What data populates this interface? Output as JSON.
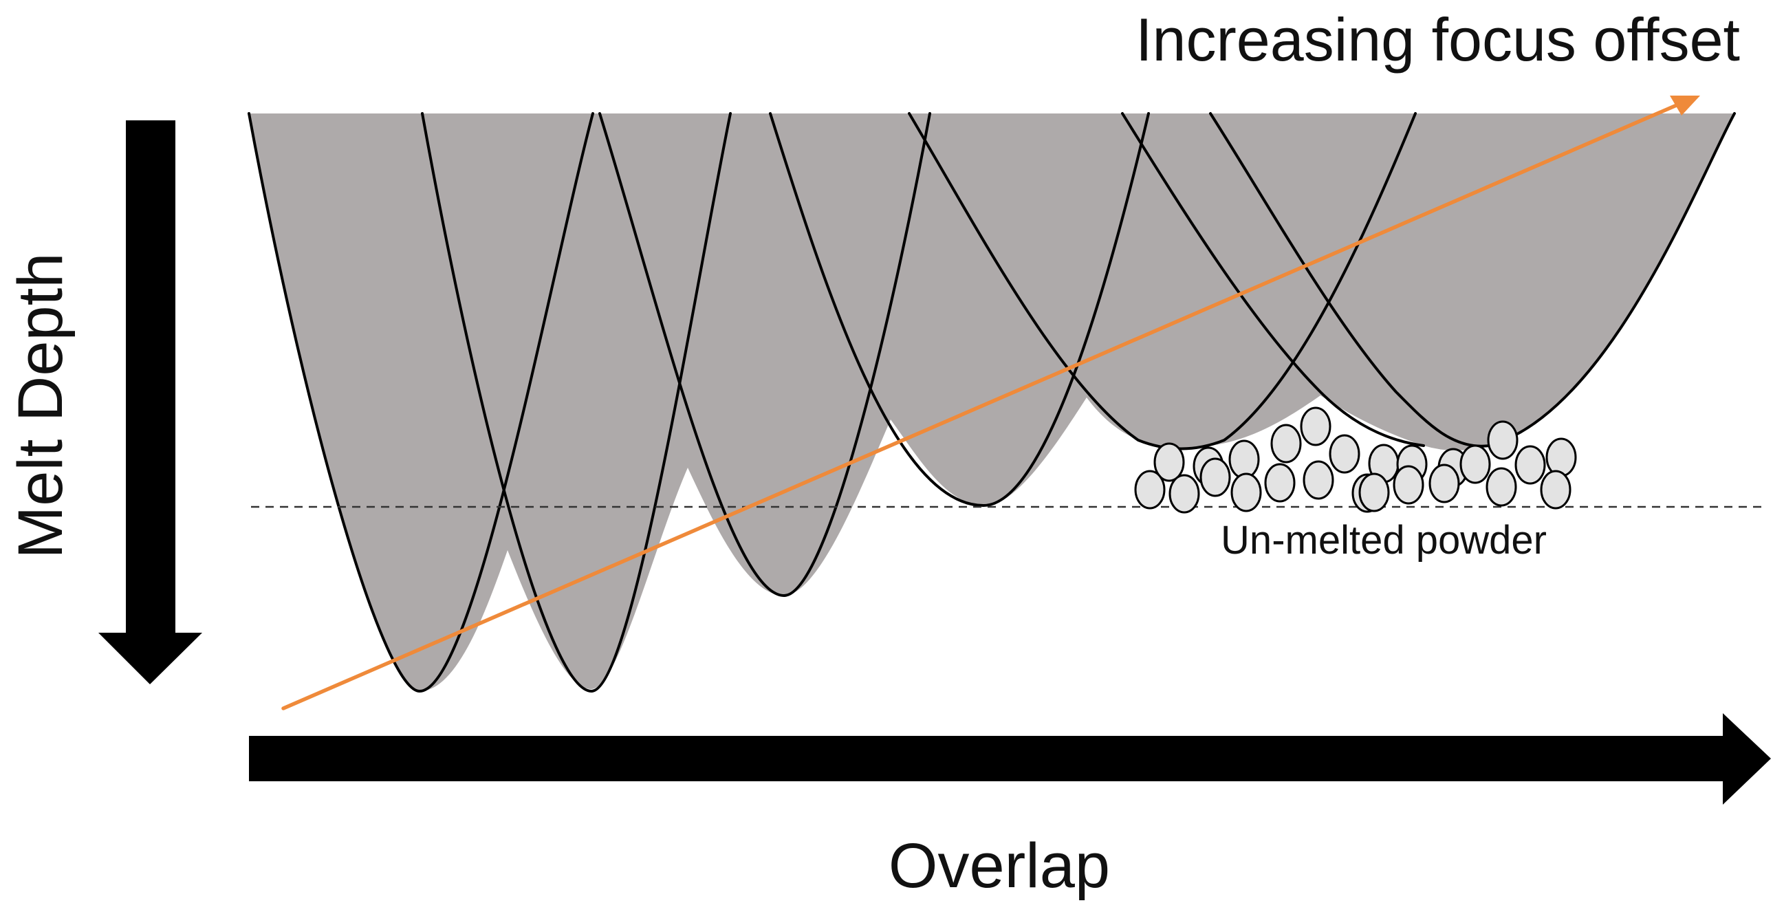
{
  "title": "Increasing focus offset",
  "labels": {
    "y_axis": "Melt Depth",
    "x_axis": "Overlap",
    "powder": "Un-melted powder"
  },
  "colors": {
    "melt_fill": "#aeaaaa",
    "outline": "#000000",
    "trend_arrow": "#ef8a3a",
    "powder_fill": "#e3e3e3",
    "background": "#ffffff"
  },
  "melt_pool_count": 7,
  "powder_particle_count": 25,
  "icons": {
    "down_arrow": "arrow-down-icon",
    "right_arrow": "arrow-right-icon",
    "trend_arrow": "trend-arrow-icon"
  }
}
